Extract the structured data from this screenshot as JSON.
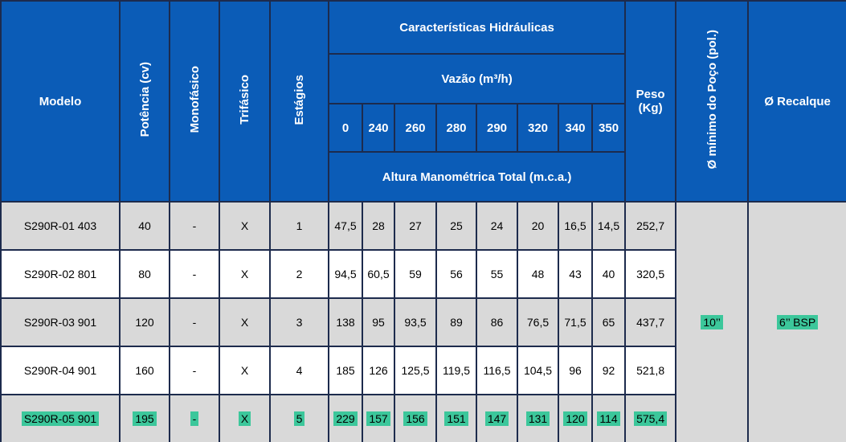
{
  "header": {
    "modelo": "Modelo",
    "potencia": "Potência (cv)",
    "monofasico": "Monofásico",
    "trifasico": "Trifásico",
    "estagios": "Estágios",
    "hidraulicas": "Características Hidráulicas",
    "vazao": "Vazão (m³/h)",
    "flows": [
      "0",
      "240",
      "260",
      "280",
      "290",
      "320",
      "340",
      "350"
    ],
    "altura": "Altura Manométrica Total (m.c.a.)",
    "peso": "Peso (Kg)",
    "poco": "Ø mínimo do Poço (pol.)",
    "recalque": "Ø Recalque"
  },
  "rows": [
    [
      "S290R-01 403",
      "40",
      "-",
      "X",
      "1",
      "47,5",
      "28",
      "27",
      "25",
      "24",
      "20",
      "16,5",
      "14,5",
      "252,7"
    ],
    [
      "S290R-02 801",
      "80",
      "-",
      "X",
      "2",
      "94,5",
      "60,5",
      "59",
      "56",
      "55",
      "48",
      "43",
      "40",
      "320,5"
    ],
    [
      "S290R-03 901",
      "120",
      "-",
      "X",
      "3",
      "138",
      "95",
      "93,5",
      "89",
      "86",
      "76,5",
      "71,5",
      "65",
      "437,7"
    ],
    [
      "S290R-04 901",
      "160",
      "-",
      "X",
      "4",
      "185",
      "126",
      "125,5",
      "119,5",
      "116,5",
      "104,5",
      "96",
      "92",
      "521,8"
    ],
    [
      "S290R-05 901",
      "195",
      "-",
      "X",
      "5",
      "229",
      "157",
      "156",
      "151",
      "147",
      "131",
      "120",
      "114",
      "575,4"
    ]
  ],
  "poco_value": "10’’",
  "recalque_value": "6’’ BSP"
}
